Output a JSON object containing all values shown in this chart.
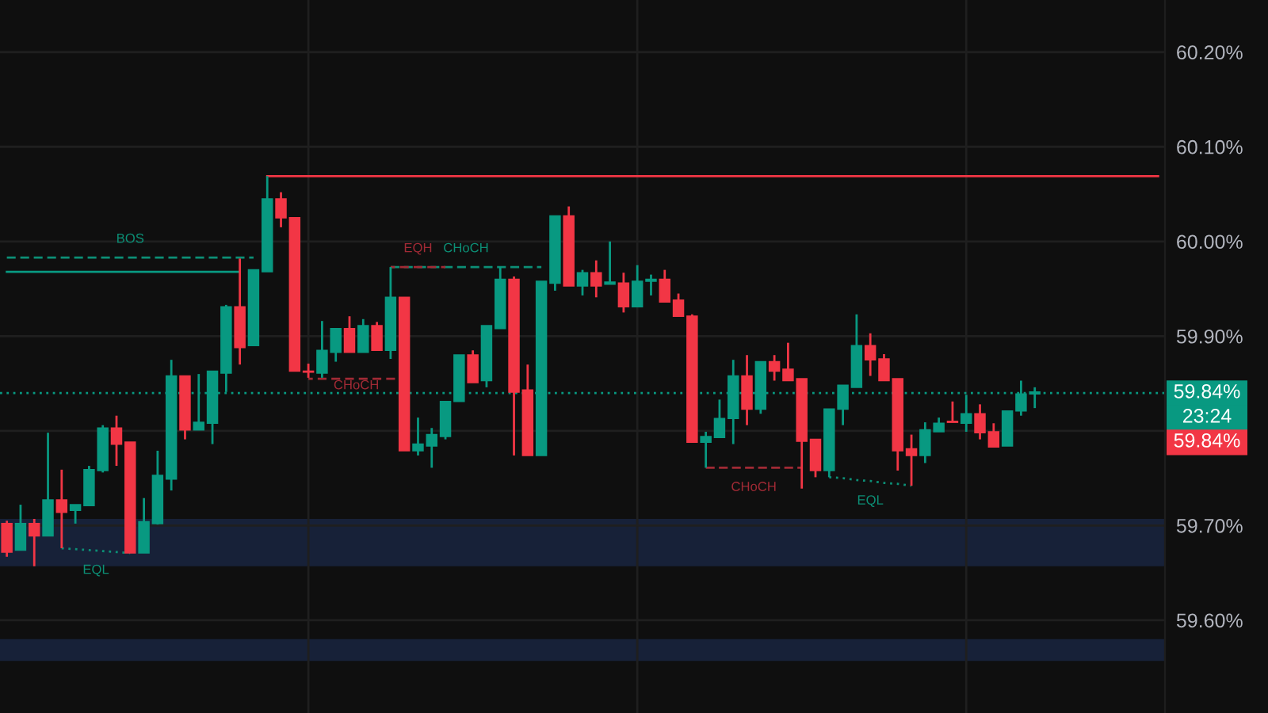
{
  "chart_data": {
    "type": "candlestick",
    "categories": [
      null,
      null,
      null,
      null,
      null,
      null,
      null,
      null,
      null,
      null,
      null,
      null,
      null,
      null,
      null,
      null,
      null,
      null,
      null,
      null,
      null,
      null,
      null,
      null,
      null,
      null,
      null,
      null,
      null,
      null,
      null,
      null,
      null,
      null,
      null,
      null,
      null,
      null,
      null,
      null,
      null,
      null,
      null,
      null,
      null,
      null,
      null,
      null,
      null,
      null,
      null,
      null,
      null,
      null,
      null,
      null,
      null,
      null,
      null,
      null,
      null,
      null,
      null,
      null,
      null,
      null,
      null,
      null,
      null,
      null,
      null,
      null,
      null,
      null,
      null,
      null,
      null,
      null,
      null,
      null,
      null,
      null,
      null,
      null,
      null
    ],
    "ohlc": [
      [
        59.702,
        59.705,
        59.667,
        59.672
      ],
      [
        59.674,
        59.722,
        59.674,
        59.702
      ],
      [
        59.702,
        59.707,
        59.657,
        59.689
      ],
      [
        59.689,
        59.798,
        59.689,
        59.727
      ],
      [
        59.727,
        59.759,
        59.676,
        59.714
      ],
      [
        59.716,
        59.722,
        59.702,
        59.722
      ],
      [
        59.721,
        59.763,
        59.721,
        59.759
      ],
      [
        59.758,
        59.806,
        59.756,
        59.803
      ],
      [
        59.803,
        59.816,
        59.763,
        59.786
      ],
      [
        59.788,
        59.788,
        59.671,
        59.671
      ],
      [
        59.671,
        59.729,
        59.671,
        59.704
      ],
      [
        59.702,
        59.779,
        59.701,
        59.753
      ],
      [
        59.749,
        59.875,
        59.737,
        59.858
      ],
      [
        59.858,
        59.858,
        59.791,
        59.801
      ],
      [
        59.801,
        59.86,
        59.801,
        59.809
      ],
      [
        59.808,
        59.863,
        59.786,
        59.863
      ],
      [
        59.861,
        59.933,
        59.841,
        59.931
      ],
      [
        59.931,
        59.982,
        59.87,
        59.888
      ],
      [
        59.89,
        59.97,
        59.89,
        59.97
      ],
      [
        59.968,
        60.069,
        59.968,
        60.045
      ],
      [
        60.045,
        60.052,
        60.015,
        60.025
      ],
      [
        60.025,
        60.025,
        59.863,
        59.863
      ],
      [
        59.863,
        59.871,
        59.856,
        59.862
      ],
      [
        59.861,
        59.916,
        59.856,
        59.885
      ],
      [
        59.883,
        59.908,
        59.873,
        59.908
      ],
      [
        59.908,
        59.921,
        59.883,
        59.883
      ],
      [
        59.883,
        59.918,
        59.883,
        59.911
      ],
      [
        59.911,
        59.915,
        59.885,
        59.885
      ],
      [
        59.885,
        59.973,
        59.876,
        59.941
      ],
      [
        59.941,
        59.941,
        59.779,
        59.779
      ],
      [
        59.779,
        59.814,
        59.774,
        59.786
      ],
      [
        59.784,
        59.803,
        59.761,
        59.796
      ],
      [
        59.794,
        59.831,
        59.791,
        59.831
      ],
      [
        59.831,
        59.88,
        59.831,
        59.88
      ],
      [
        59.88,
        59.885,
        59.851,
        59.851
      ],
      [
        59.853,
        59.911,
        59.846,
        59.911
      ],
      [
        59.908,
        59.973,
        59.908,
        59.96
      ],
      [
        59.96,
        59.963,
        59.774,
        59.841
      ],
      [
        59.843,
        59.87,
        59.774,
        59.774
      ],
      [
        59.774,
        59.958,
        59.774,
        59.958
      ],
      [
        59.956,
        60.027,
        59.948,
        60.027
      ],
      [
        60.027,
        60.037,
        59.953,
        59.953
      ],
      [
        59.953,
        59.97,
        59.943,
        59.967
      ],
      [
        59.967,
        59.98,
        59.941,
        59.953
      ],
      [
        59.955,
        60.0,
        59.955,
        59.957
      ],
      [
        59.956,
        59.967,
        59.925,
        59.931
      ],
      [
        59.931,
        59.975,
        59.931,
        59.958
      ],
      [
        59.958,
        59.965,
        59.943,
        59.96
      ],
      [
        59.96,
        59.97,
        59.936,
        59.936
      ],
      [
        59.938,
        59.945,
        59.921,
        59.921
      ],
      [
        59.921,
        59.923,
        59.788,
        59.788
      ],
      [
        59.788,
        59.799,
        59.761,
        59.794
      ],
      [
        59.793,
        59.833,
        59.793,
        59.813
      ],
      [
        59.813,
        59.875,
        59.786,
        59.858
      ],
      [
        59.858,
        59.88,
        59.806,
        59.823
      ],
      [
        59.823,
        59.873,
        59.818,
        59.873
      ],
      [
        59.873,
        59.88,
        59.853,
        59.863
      ],
      [
        59.865,
        59.893,
        59.853,
        59.853
      ],
      [
        59.855,
        59.855,
        59.739,
        59.789
      ],
      [
        59.791,
        59.791,
        59.751,
        59.758
      ],
      [
        59.758,
        59.823,
        59.751,
        59.823
      ],
      [
        59.823,
        59.848,
        59.806,
        59.848
      ],
      [
        59.846,
        59.923,
        59.846,
        59.89
      ],
      [
        59.89,
        59.903,
        59.858,
        59.875
      ],
      [
        59.876,
        59.881,
        59.853,
        59.853
      ],
      [
        59.855,
        59.855,
        59.758,
        59.779
      ],
      [
        59.781,
        59.796,
        59.742,
        59.774
      ],
      [
        59.774,
        59.809,
        59.766,
        59.801
      ],
      [
        59.799,
        59.814,
        59.799,
        59.808
      ],
      [
        59.81,
        59.831,
        59.809,
        59.809
      ],
      [
        59.808,
        59.838,
        59.799,
        59.818
      ],
      [
        59.818,
        59.828,
        59.791,
        59.798
      ],
      [
        59.799,
        59.808,
        59.783,
        59.783
      ],
      [
        59.784,
        59.821,
        59.784,
        59.821
      ],
      [
        59.821,
        59.853,
        59.816,
        59.839
      ],
      [
        59.839,
        59.846,
        59.824,
        59.841
      ],
      null,
      null,
      null,
      null,
      null,
      null,
      null,
      null,
      null
    ],
    "colors": [
      "#f23645",
      "#089981",
      "#f23645",
      "#089981",
      "#f23645",
      "#089981",
      "#089981",
      "#089981",
      "#f23645",
      "#f23645",
      "#089981",
      "#089981",
      "#089981",
      "#f23645",
      "#089981",
      "#089981",
      "#089981",
      "#f23645",
      "#089981",
      "#089981",
      "#f23645",
      "#f23645",
      "#f23645",
      "#089981",
      "#089981",
      "#f23645",
      "#089981",
      "#f23645",
      "#089981",
      "#f23645",
      "#089981",
      "#089981",
      "#089981",
      "#089981",
      "#f23645",
      "#089981",
      "#089981",
      "#f23645",
      "#f23645",
      "#089981",
      "#089981",
      "#f23645",
      "#089981",
      "#f23645",
      "#089981",
      "#f23645",
      "#089981",
      "#089981",
      "#f23645",
      "#f23645",
      "#f23645",
      "#089981",
      "#089981",
      "#089981",
      "#f23645",
      "#089981",
      "#f23645",
      "#f23645",
      "#f23645",
      "#f23645",
      "#089981",
      "#089981",
      "#089981",
      "#f23645",
      "#f23645",
      "#f23645",
      "#f23645",
      "#089981",
      "#089981",
      "#f23645",
      "#089981",
      "#f23645",
      "#f23645",
      "#089981",
      "#089981",
      "#089981",
      null,
      null,
      null,
      null,
      null,
      null,
      null,
      null,
      null
    ],
    "series": [
      {
        "type": "line",
        "name": "BOS",
        "color": "#0c8f76",
        "line_style": "dashed",
        "values": [
          59.983,
          59.983,
          59.983,
          59.983,
          59.983,
          59.983,
          59.983,
          59.983,
          59.983,
          59.983,
          59.983,
          59.983,
          59.983,
          59.983,
          59.983,
          59.983,
          59.983,
          59.983,
          59.983,
          null,
          null,
          null,
          null,
          null,
          null,
          null,
          null,
          null,
          null,
          null,
          null,
          null,
          null,
          null,
          null,
          null,
          null,
          null,
          null,
          null,
          null,
          null,
          null,
          null,
          null,
          null,
          null,
          null,
          null,
          null,
          null,
          null,
          null,
          null,
          null,
          null,
          null,
          null,
          null,
          null,
          null,
          null,
          null,
          null,
          null,
          null,
          null,
          null,
          null,
          null,
          null,
          null,
          null,
          null,
          null,
          null,
          null,
          null,
          null,
          null,
          null,
          null,
          null,
          null,
          null
        ]
      },
      {
        "type": "line",
        "color": "#089981",
        "line_style": "solid",
        "values": [
          59.968,
          59.968,
          59.968,
          59.968,
          59.968,
          59.968,
          59.968,
          59.968,
          59.968,
          59.968,
          59.968,
          59.968,
          59.968,
          59.968,
          59.968,
          59.968,
          59.968,
          59.968,
          null,
          null,
          null,
          null,
          null,
          null,
          null,
          null,
          null,
          null,
          null,
          null,
          null,
          null,
          null,
          null,
          null,
          null,
          null,
          null,
          null,
          null,
          null,
          null,
          null,
          null,
          null,
          null,
          null,
          null,
          null,
          null,
          null,
          null,
          null,
          null,
          null,
          null,
          null,
          null,
          null,
          null,
          null,
          null,
          null,
          null,
          null,
          null,
          null,
          null,
          null,
          null,
          null,
          null,
          null,
          null,
          null,
          null,
          null,
          null,
          null,
          null,
          null,
          null,
          null,
          null,
          null
        ]
      },
      {
        "type": "line",
        "color": "#f23645",
        "line_style": "solid",
        "values": [
          null,
          null,
          null,
          null,
          null,
          null,
          null,
          null,
          null,
          null,
          null,
          null,
          null,
          null,
          null,
          null,
          null,
          null,
          null,
          60.069,
          60.069,
          60.069,
          60.069,
          60.069,
          60.069,
          60.069,
          60.069,
          60.069,
          60.069,
          60.069,
          60.069,
          60.069,
          60.069,
          60.069,
          60.069,
          60.069,
          60.069,
          60.069,
          60.069,
          60.069,
          60.069,
          60.069,
          60.069,
          60.069,
          60.069,
          60.069,
          60.069,
          60.069,
          60.069,
          60.069,
          60.069,
          60.069,
          60.069,
          60.069,
          60.069,
          60.069,
          60.069,
          60.069,
          60.069,
          60.069,
          60.069,
          60.069,
          60.069,
          60.069,
          60.069,
          60.069,
          60.069,
          60.069,
          60.069,
          60.069,
          60.069,
          60.069,
          60.069,
          60.069,
          60.069,
          60.069,
          60.069,
          60.069,
          60.069,
          60.069,
          60.069,
          60.069,
          60.069,
          60.069,
          60.069
        ]
      },
      {
        "type": "line",
        "name": "EQH",
        "color": "#a12a35",
        "line_style": "dashed",
        "values": [
          null,
          null,
          null,
          null,
          null,
          null,
          null,
          null,
          null,
          null,
          null,
          null,
          null,
          null,
          null,
          null,
          null,
          null,
          null,
          null,
          null,
          null,
          null,
          null,
          null,
          null,
          null,
          null,
          59.973,
          59.973,
          59.973,
          59.973,
          59.973,
          null,
          null,
          null,
          null,
          null,
          null,
          null,
          null,
          null,
          null,
          null,
          null,
          null,
          null,
          null,
          null,
          null,
          null,
          null,
          null,
          null,
          null,
          null,
          null,
          null,
          null,
          null,
          null,
          null,
          null,
          null,
          null,
          null,
          null,
          null,
          null,
          null,
          null,
          null,
          null,
          null,
          null,
          null,
          null,
          null,
          null,
          null,
          null,
          null,
          null,
          null,
          null
        ]
      },
      {
        "type": "line",
        "name": "CHoCH",
        "color": "#0c8f76",
        "line_style": "dashed",
        "values": [
          null,
          null,
          null,
          null,
          null,
          null,
          null,
          null,
          null,
          null,
          null,
          null,
          null,
          null,
          null,
          null,
          null,
          null,
          null,
          null,
          null,
          null,
          null,
          null,
          null,
          null,
          null,
          null,
          59.973,
          59.973,
          59.973,
          59.973,
          59.973,
          59.973,
          59.973,
          59.973,
          59.973,
          59.973,
          59.973,
          59.973,
          null,
          null,
          null,
          null,
          null,
          null,
          null,
          null,
          null,
          null,
          null,
          null,
          null,
          null,
          null,
          null,
          null,
          null,
          null,
          null,
          null,
          null,
          null,
          null,
          null,
          null,
          null,
          null,
          null,
          null,
          null,
          null,
          null,
          null,
          null,
          null,
          null,
          null,
          null,
          null,
          null,
          null,
          null,
          null,
          null
        ]
      },
      {
        "type": "line",
        "name": "CHoCH",
        "color": "#a12a35",
        "line_style": "dashed",
        "values": [
          null,
          null,
          null,
          null,
          null,
          null,
          null,
          null,
          null,
          null,
          null,
          null,
          null,
          null,
          null,
          null,
          null,
          null,
          null,
          null,
          null,
          null,
          59.855,
          59.855,
          59.855,
          59.855,
          59.855,
          59.855,
          59.855,
          59.855,
          null,
          null,
          null,
          null,
          null,
          null,
          null,
          null,
          null,
          null,
          null,
          null,
          null,
          null,
          null,
          null,
          null,
          null,
          null,
          null,
          null,
          null,
          null,
          null,
          null,
          null,
          null,
          null,
          null,
          null,
          null,
          null,
          null,
          null,
          null,
          null,
          null,
          null,
          null,
          null,
          null,
          null,
          null,
          null,
          null,
          null,
          null,
          null,
          null,
          null,
          null,
          null,
          null,
          null,
          null
        ]
      },
      {
        "type": "line",
        "name": "CHoCH",
        "color": "#a12a35",
        "line_style": "dashed",
        "values": [
          null,
          null,
          null,
          null,
          null,
          null,
          null,
          null,
          null,
          null,
          null,
          null,
          null,
          null,
          null,
          null,
          null,
          null,
          null,
          null,
          null,
          null,
          null,
          null,
          null,
          null,
          null,
          null,
          null,
          null,
          null,
          null,
          null,
          null,
          null,
          null,
          null,
          null,
          null,
          null,
          null,
          null,
          null,
          null,
          null,
          null,
          null,
          null,
          null,
          null,
          null,
          59.761,
          59.761,
          59.761,
          59.761,
          59.761,
          59.761,
          59.761,
          59.761,
          null,
          null,
          null,
          null,
          null,
          null,
          null,
          null,
          null,
          null,
          null,
          null,
          null,
          null,
          null,
          null,
          null,
          null,
          null,
          null,
          null,
          null,
          null,
          null,
          null,
          null
        ]
      },
      {
        "type": "line",
        "name": "EQL",
        "color": "#0c8f76",
        "line_style": "dotted",
        "values": [
          null,
          null,
          null,
          null,
          59.676,
          59.675,
          59.674,
          59.673,
          59.672,
          59.671,
          null,
          null,
          null,
          null,
          null,
          null,
          null,
          null,
          null,
          null,
          null,
          null,
          null,
          null,
          null,
          null,
          null,
          null,
          null,
          null,
          null,
          null,
          null,
          null,
          null,
          null,
          null,
          null,
          null,
          null,
          null,
          null,
          null,
          null,
          null,
          null,
          null,
          null,
          null,
          null,
          null,
          null,
          null,
          null,
          null,
          null,
          null,
          null,
          null,
          null,
          null,
          null,
          null,
          null,
          null,
          null,
          null,
          null,
          null,
          null,
          null,
          null,
          null,
          null,
          null,
          null,
          null,
          null,
          null,
          null,
          null,
          null,
          null,
          null,
          null
        ]
      },
      {
        "type": "line",
        "name": "EQL",
        "color": "#0c8f76",
        "line_style": "dotted",
        "values": [
          null,
          null,
          null,
          null,
          null,
          null,
          null,
          null,
          null,
          null,
          null,
          null,
          null,
          null,
          null,
          null,
          null,
          null,
          null,
          null,
          null,
          null,
          null,
          null,
          null,
          null,
          null,
          null,
          null,
          null,
          null,
          null,
          null,
          null,
          null,
          null,
          null,
          null,
          null,
          null,
          null,
          null,
          null,
          null,
          null,
          null,
          null,
          null,
          null,
          null,
          null,
          null,
          null,
          null,
          null,
          null,
          null,
          null,
          null,
          null,
          59.751,
          59.75,
          59.748,
          59.747,
          59.745,
          59.744,
          59.742,
          null,
          null,
          null,
          null,
          null,
          null,
          null,
          null,
          null,
          null,
          null,
          null,
          null,
          null,
          null,
          null,
          null,
          null
        ]
      }
    ],
    "ref_lines": [
      {
        "axis": "y",
        "value": 59.84,
        "label": "59.84%",
        "color": "#089981",
        "line_style": "dotted"
      }
    ],
    "bands": [
      {
        "axis": "y",
        "from": 59.657,
        "to": 59.707,
        "color": "#172138"
      },
      {
        "axis": "y",
        "from": 59.557,
        "to": 59.58,
        "color": "#172138"
      }
    ],
    "annotations": [
      "23:24",
      "59.84%"
    ],
    "ylim": [
      59.502,
      60.255
    ],
    "yticks": [
      {
        "value": 59.6,
        "label": "59.60%"
      },
      {
        "value": 59.7,
        "label": "59.70%"
      },
      {
        "value": 59.8,
        "label": null
      },
      {
        "value": 59.9,
        "label": "59.90%"
      },
      {
        "value": 60.0,
        "label": "60.00%"
      },
      {
        "value": 60.1,
        "label": "60.10%"
      },
      {
        "value": 60.2,
        "label": "60.20%"
      }
    ],
    "grid": true
  }
}
